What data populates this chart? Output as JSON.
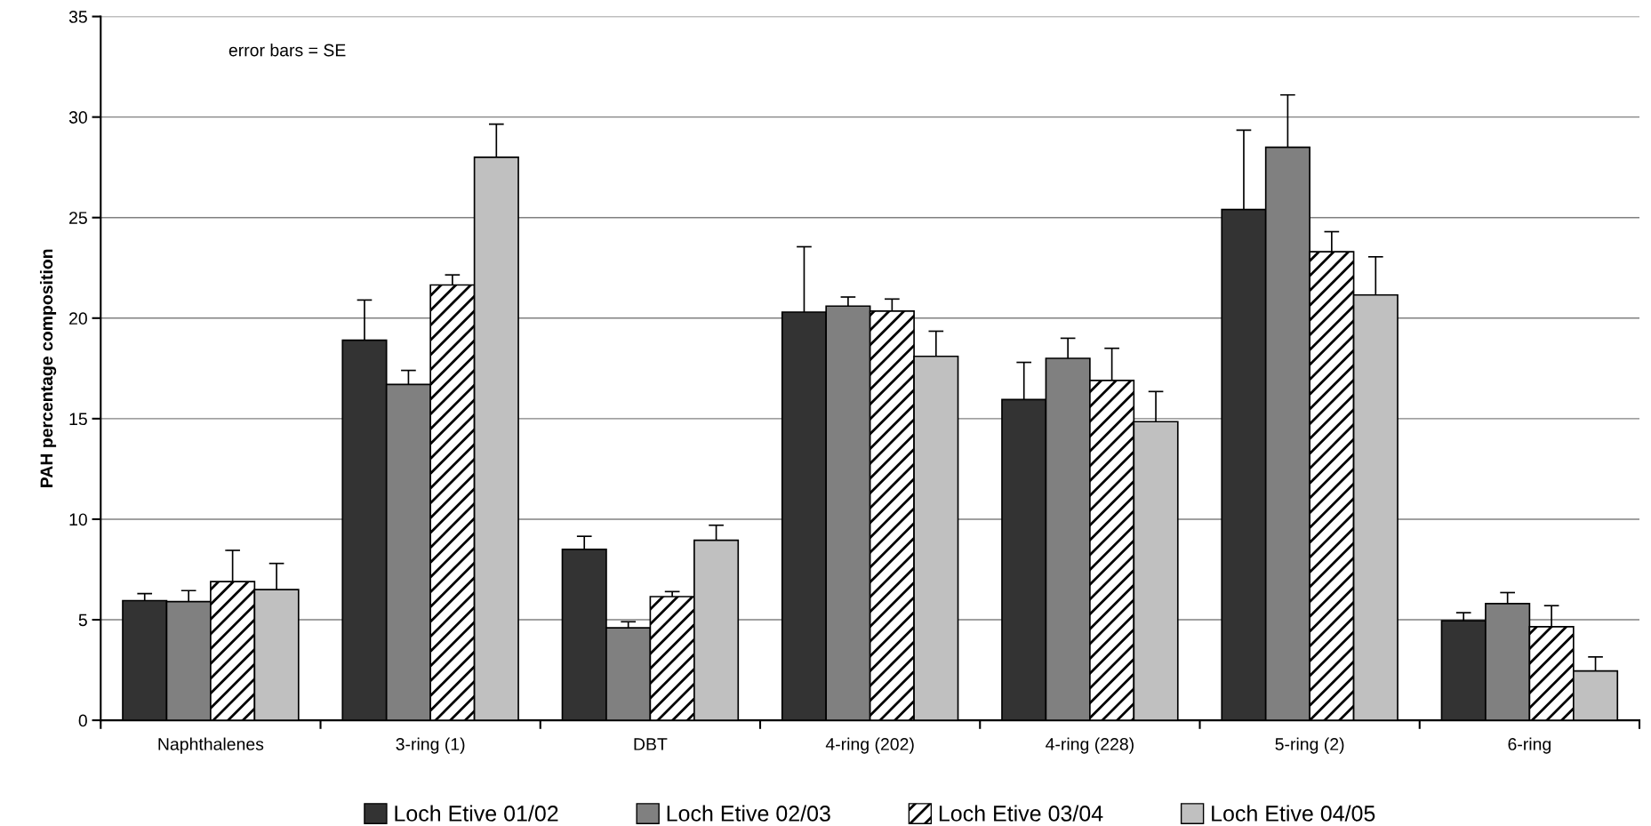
{
  "chart_data": {
    "type": "bar",
    "ylabel": "PAH percentage composition",
    "categories": [
      "Naphthalenes",
      "3-ring (1)",
      "DBT",
      "4-ring (202)",
      "4-ring (228)",
      "5-ring (2)",
      "6-ring"
    ],
    "series": [
      {
        "name": "Loch Etive 01/02",
        "color": "#333333",
        "values": [
          5.95,
          18.9,
          8.5,
          20.3,
          15.95,
          25.4,
          4.95
        ],
        "errors": [
          0.35,
          2.0,
          0.65,
          3.25,
          1.85,
          3.95,
          0.4
        ]
      },
      {
        "name": "Loch Etive 02/03",
        "color": "#808080",
        "values": [
          5.9,
          16.7,
          4.6,
          20.6,
          18.0,
          28.5,
          5.8
        ],
        "errors": [
          0.55,
          0.7,
          0.3,
          0.45,
          1.0,
          2.6,
          0.55
        ]
      },
      {
        "name": "Loch Etive 03/04",
        "color": "#ffffff",
        "values": [
          6.9,
          21.65,
          6.15,
          20.35,
          16.9,
          23.3,
          4.65
        ],
        "errors": [
          1.55,
          0.5,
          0.25,
          0.6,
          1.6,
          1.0,
          1.05
        ]
      },
      {
        "name": "Loch Etive 04/05",
        "color": "#c0c0c0",
        "values": [
          6.5,
          28.0,
          8.95,
          18.1,
          14.85,
          21.15,
          2.45
        ],
        "errors": [
          1.3,
          1.65,
          0.75,
          1.25,
          1.5,
          1.9,
          0.7
        ]
      }
    ],
    "ylim": [
      0,
      35
    ],
    "yticks": [
      0,
      5,
      10,
      15,
      20,
      25,
      30,
      35
    ],
    "grid": "y",
    "legend": "bottom",
    "annotations": [
      "error bars = SE"
    ]
  }
}
